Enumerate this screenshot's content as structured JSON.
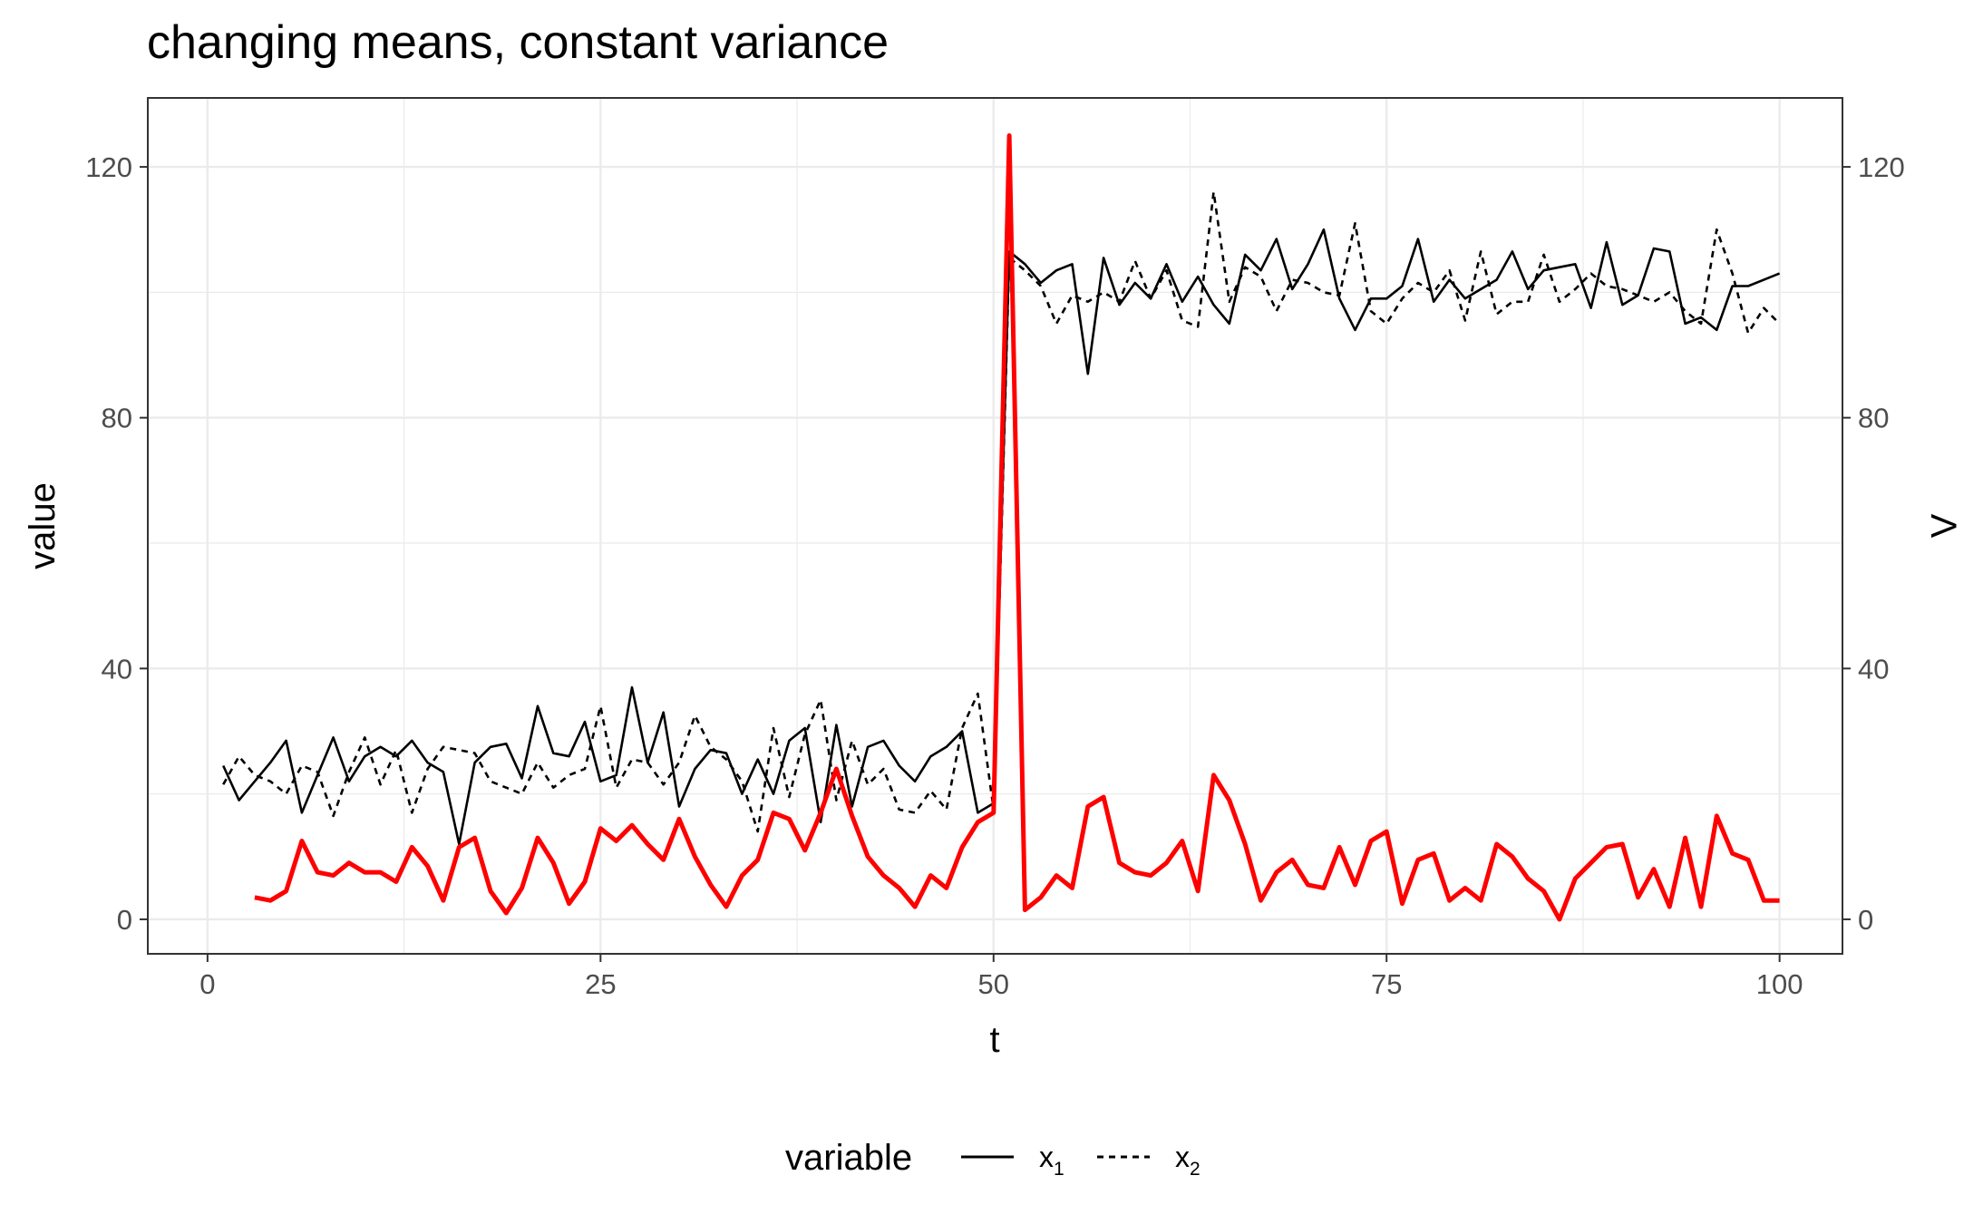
{
  "chart_data": {
    "type": "line",
    "title": "changing means, constant variance",
    "xlabel": "t",
    "ylabel": "value",
    "ylabel_right": "Λ",
    "xlim": [
      -3.8,
      104
    ],
    "ylim": [
      -5.5,
      131
    ],
    "x_ticks": [
      0,
      25,
      50,
      75,
      100
    ],
    "y_ticks": [
      0,
      40,
      80,
      120
    ],
    "x_tick_labels": [
      "0",
      "25",
      "50",
      "75",
      "100"
    ],
    "y_tick_labels": [
      "0",
      "40",
      "80",
      "120"
    ],
    "y_tick_labels_right": [
      "0",
      "40",
      "80",
      "120"
    ],
    "grid": true,
    "legend": {
      "position": "bottom",
      "title": "variable",
      "entries": [
        {
          "label": "x",
          "sub": "1",
          "linetype": "solid"
        },
        {
          "label": "x",
          "sub": "2",
          "linetype": "dashed"
        }
      ]
    },
    "colors": {
      "x1": "#000000",
      "x2": "#000000",
      "lambda": "#ff0000",
      "grid": "#ebebeb",
      "border": "#333333"
    },
    "series": [
      {
        "id": "x1",
        "linetype": "solid",
        "color": "#000000",
        "x": [
          1,
          2,
          3,
          4,
          5,
          6,
          7,
          8,
          9,
          10,
          11,
          12,
          13,
          14,
          15,
          16,
          17,
          18,
          19,
          20,
          21,
          22,
          23,
          24,
          25,
          26,
          27,
          28,
          29,
          30,
          31,
          32,
          33,
          34,
          35,
          36,
          37,
          38,
          39,
          40,
          41,
          42,
          43,
          44,
          45,
          46,
          47,
          48,
          49,
          50,
          51,
          52,
          53,
          54,
          55,
          56,
          57,
          58,
          59,
          60,
          61,
          62,
          63,
          64,
          65,
          66,
          67,
          68,
          69,
          70,
          71,
          72,
          73,
          74,
          75,
          76,
          77,
          78,
          79,
          80,
          81,
          82,
          83,
          84,
          85,
          86,
          87,
          88,
          89,
          90,
          91,
          92,
          93,
          94,
          95,
          96,
          97,
          98,
          99,
          100
        ],
        "values": [
          24.5,
          19,
          22,
          25,
          28.5,
          17,
          23,
          29,
          22,
          26,
          27.5,
          26,
          28.5,
          25,
          23.5,
          12,
          25,
          27.5,
          28,
          22.5,
          34,
          26.5,
          26,
          31.5,
          22,
          23,
          37,
          25,
          33,
          18,
          24,
          27,
          26.5,
          20,
          25.5,
          20,
          28.5,
          30.5,
          15.5,
          31,
          18,
          27.5,
          28.5,
          24.5,
          22,
          26,
          27.5,
          30,
          17,
          18.5,
          106.5,
          104.5,
          101.5,
          103.5,
          104.5,
          87,
          105.5,
          98,
          101.5,
          99,
          104.5,
          98.5,
          102.5,
          98,
          95,
          106,
          103.5,
          108.5,
          100.5,
          104.5,
          110,
          99,
          94,
          99,
          99,
          101,
          108.5,
          98.5,
          102,
          99,
          100.5,
          102,
          106.5,
          100.5,
          103.5,
          104,
          104.5,
          97.5,
          108,
          98,
          99.5,
          107,
          106.5,
          95,
          96,
          94,
          101,
          101,
          102,
          103
        ]
      },
      {
        "id": "x2",
        "linetype": "dashed",
        "color": "#000000",
        "x": [
          1,
          2,
          3,
          4,
          5,
          6,
          7,
          8,
          9,
          10,
          11,
          12,
          13,
          14,
          15,
          16,
          17,
          18,
          19,
          20,
          21,
          22,
          23,
          24,
          25,
          26,
          27,
          28,
          29,
          30,
          31,
          32,
          33,
          34,
          35,
          36,
          37,
          38,
          39,
          40,
          41,
          42,
          43,
          44,
          45,
          46,
          47,
          48,
          49,
          50,
          51,
          52,
          53,
          54,
          55,
          56,
          57,
          58,
          59,
          60,
          61,
          62,
          63,
          64,
          65,
          66,
          67,
          68,
          69,
          70,
          71,
          72,
          73,
          74,
          75,
          76,
          77,
          78,
          79,
          80,
          81,
          82,
          83,
          84,
          85,
          86,
          87,
          88,
          89,
          90,
          91,
          92,
          93,
          94,
          95,
          96,
          97,
          98,
          99,
          100
        ],
        "values": [
          21.5,
          26,
          23,
          22,
          20,
          24.5,
          23.5,
          16.5,
          23.5,
          29,
          21.5,
          27,
          17,
          24,
          27.5,
          27,
          26.5,
          22,
          21,
          20,
          25,
          21,
          23,
          24,
          34,
          21,
          25.5,
          25,
          21.5,
          25,
          32.5,
          27.5,
          25.5,
          22,
          14,
          30.5,
          19.5,
          29.5,
          35,
          19,
          28.5,
          21.5,
          24,
          17.5,
          17,
          20.5,
          17.5,
          30.5,
          36,
          17.5,
          105.5,
          103.5,
          101,
          95,
          99.5,
          98.5,
          100,
          98.5,
          105,
          99,
          103.5,
          95.5,
          94.5,
          116,
          98.5,
          104,
          102.5,
          97,
          102,
          101.5,
          100,
          99.5,
          111,
          97,
          95,
          99,
          101.5,
          100,
          103.5,
          95.5,
          106.5,
          96.5,
          98.5,
          98.5,
          106,
          98.5,
          100.5,
          103,
          101,
          100.5,
          99.5,
          98.5,
          100,
          97,
          95,
          110,
          103,
          93.5,
          97.5,
          95
        ]
      },
      {
        "id": "lambda",
        "linetype": "solid",
        "color": "#ff0000",
        "x": [
          3,
          4,
          5,
          6,
          7,
          8,
          9,
          10,
          11,
          12,
          13,
          14,
          15,
          16,
          17,
          18,
          19,
          20,
          21,
          22,
          23,
          24,
          25,
          26,
          27,
          28,
          29,
          30,
          31,
          32,
          33,
          34,
          35,
          36,
          37,
          38,
          39,
          40,
          41,
          42,
          43,
          44,
          45,
          46,
          47,
          48,
          49,
          50,
          51,
          52,
          53,
          54,
          55,
          56,
          57,
          58,
          59,
          60,
          61,
          62,
          63,
          64,
          65,
          66,
          67,
          68,
          69,
          70,
          71,
          72,
          73,
          74,
          75,
          76,
          77,
          78,
          79,
          80,
          81,
          82,
          83,
          84,
          85,
          86,
          87,
          88,
          89,
          90,
          91,
          92,
          93,
          94,
          95,
          96,
          97,
          98,
          99,
          100
        ],
        "values": [
          3.5,
          3,
          4.5,
          12.5,
          7.5,
          7,
          9,
          7.5,
          7.5,
          6,
          11.5,
          8.5,
          3,
          11.5,
          13,
          4.5,
          1,
          5,
          13,
          9,
          2.5,
          6,
          14.5,
          12.5,
          15,
          12,
          9.5,
          16,
          10,
          5.5,
          2,
          7,
          9.5,
          17,
          16,
          11,
          17,
          24,
          16.5,
          10,
          7,
          5,
          2,
          7,
          5,
          11.5,
          15.5,
          17,
          125,
          1.5,
          3.5,
          7,
          5,
          18,
          19.5,
          9,
          7.5,
          7,
          9,
          12.5,
          4.5,
          23,
          19,
          12,
          3,
          7.5,
          9.5,
          5.5,
          5,
          11.5,
          5.5,
          12.5,
          14,
          2.5,
          9.5,
          10.5,
          3,
          5,
          3,
          12,
          10,
          6.5,
          4.5,
          0,
          6.5,
          9,
          11.5,
          12,
          3.5,
          8,
          2,
          13,
          2,
          16.5,
          10.5,
          9.5,
          3,
          3
        ]
      }
    ]
  }
}
